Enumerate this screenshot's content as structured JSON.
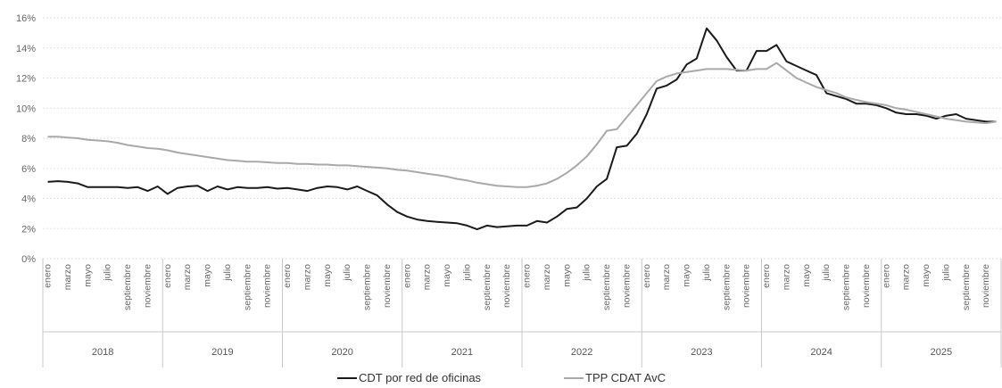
{
  "chart_data": {
    "type": "line",
    "title": "",
    "xlabel": "",
    "ylabel": "",
    "ylim": [
      0,
      16
    ],
    "yticks": [
      "0%",
      "2%",
      "4%",
      "6%",
      "8%",
      "10%",
      "12%",
      "14%",
      "16%"
    ],
    "grid": true,
    "legend_position": "bottom",
    "x_month_labels": [
      "enero",
      "marzo",
      "mayo",
      "julio",
      "septiembre",
      "noviembre"
    ],
    "x_years": [
      "2018",
      "2019",
      "2020",
      "2021",
      "2022",
      "2023",
      "2024",
      "2025"
    ],
    "x": [
      "2018-01",
      "2018-02",
      "2018-03",
      "2018-04",
      "2018-05",
      "2018-06",
      "2018-07",
      "2018-08",
      "2018-09",
      "2018-10",
      "2018-11",
      "2018-12",
      "2019-01",
      "2019-02",
      "2019-03",
      "2019-04",
      "2019-05",
      "2019-06",
      "2019-07",
      "2019-08",
      "2019-09",
      "2019-10",
      "2019-11",
      "2019-12",
      "2020-01",
      "2020-02",
      "2020-03",
      "2020-04",
      "2020-05",
      "2020-06",
      "2020-07",
      "2020-08",
      "2020-09",
      "2020-10",
      "2020-11",
      "2020-12",
      "2021-01",
      "2021-02",
      "2021-03",
      "2021-04",
      "2021-05",
      "2021-06",
      "2021-07",
      "2021-08",
      "2021-09",
      "2021-10",
      "2021-11",
      "2021-12",
      "2022-01",
      "2022-02",
      "2022-03",
      "2022-04",
      "2022-05",
      "2022-06",
      "2022-07",
      "2022-08",
      "2022-09",
      "2022-10",
      "2022-11",
      "2022-12",
      "2023-01",
      "2023-02",
      "2023-03",
      "2023-04",
      "2023-05",
      "2023-06",
      "2023-07",
      "2023-08",
      "2023-09",
      "2023-10",
      "2023-11",
      "2023-12",
      "2024-01",
      "2024-02",
      "2024-03",
      "2024-04",
      "2024-05",
      "2024-06",
      "2024-07",
      "2024-08",
      "2024-09",
      "2024-10",
      "2024-11",
      "2024-12",
      "2025-01",
      "2025-02",
      "2025-03",
      "2025-04",
      "2025-05",
      "2025-06",
      "2025-07",
      "2025-08",
      "2025-09",
      "2025-10",
      "2025-11",
      "2025-12"
    ],
    "series": [
      {
        "name": "CDT por red de oficinas",
        "color": "#1a1a1a",
        "values": [
          5.1,
          5.15,
          5.1,
          5.0,
          4.75,
          4.75,
          4.75,
          4.75,
          4.7,
          4.75,
          4.5,
          4.8,
          4.3,
          4.7,
          4.8,
          4.85,
          4.5,
          4.8,
          4.6,
          4.75,
          4.7,
          4.7,
          4.75,
          4.65,
          4.7,
          4.6,
          4.5,
          4.7,
          4.8,
          4.75,
          4.6,
          4.8,
          4.5,
          4.2,
          3.6,
          3.1,
          2.8,
          2.6,
          2.5,
          2.45,
          2.4,
          2.35,
          2.2,
          1.95,
          2.2,
          2.1,
          2.15,
          2.2,
          2.2,
          2.5,
          2.4,
          2.8,
          3.3,
          3.4,
          4.0,
          4.8,
          5.3,
          7.4,
          7.5,
          8.3,
          9.6,
          11.3,
          11.5,
          11.9,
          12.9,
          13.3,
          15.3,
          14.5,
          13.4,
          12.5,
          12.5,
          13.8,
          13.8,
          14.2,
          13.1,
          12.8,
          12.5,
          12.2,
          11.0,
          10.8,
          10.6,
          10.3,
          10.3,
          10.2,
          10.0,
          9.7,
          9.6,
          9.6,
          9.5,
          9.3,
          9.5,
          9.6,
          9.3,
          9.2,
          9.1,
          9.1
        ]
      },
      {
        "name": "TPP CDAT AvC",
        "color": "#a9a9a9",
        "values": [
          8.1,
          8.1,
          8.05,
          8.0,
          7.9,
          7.85,
          7.8,
          7.7,
          7.55,
          7.45,
          7.35,
          7.3,
          7.2,
          7.05,
          6.95,
          6.85,
          6.75,
          6.65,
          6.55,
          6.5,
          6.45,
          6.45,
          6.4,
          6.35,
          6.35,
          6.3,
          6.3,
          6.25,
          6.25,
          6.2,
          6.2,
          6.15,
          6.1,
          6.05,
          6.0,
          5.9,
          5.85,
          5.75,
          5.65,
          5.55,
          5.45,
          5.3,
          5.2,
          5.05,
          4.95,
          4.85,
          4.8,
          4.75,
          4.75,
          4.85,
          5.0,
          5.3,
          5.7,
          6.2,
          6.8,
          7.6,
          8.5,
          8.6,
          9.4,
          10.2,
          11.0,
          11.8,
          12.1,
          12.3,
          12.4,
          12.5,
          12.6,
          12.6,
          12.6,
          12.55,
          12.5,
          12.6,
          12.6,
          13.0,
          12.5,
          12.0,
          11.7,
          11.4,
          11.2,
          11.0,
          10.7,
          10.55,
          10.4,
          10.3,
          10.2,
          10.0,
          9.9,
          9.75,
          9.6,
          9.45,
          9.3,
          9.2,
          9.1,
          9.05,
          9.0,
          9.1
        ]
      }
    ]
  }
}
